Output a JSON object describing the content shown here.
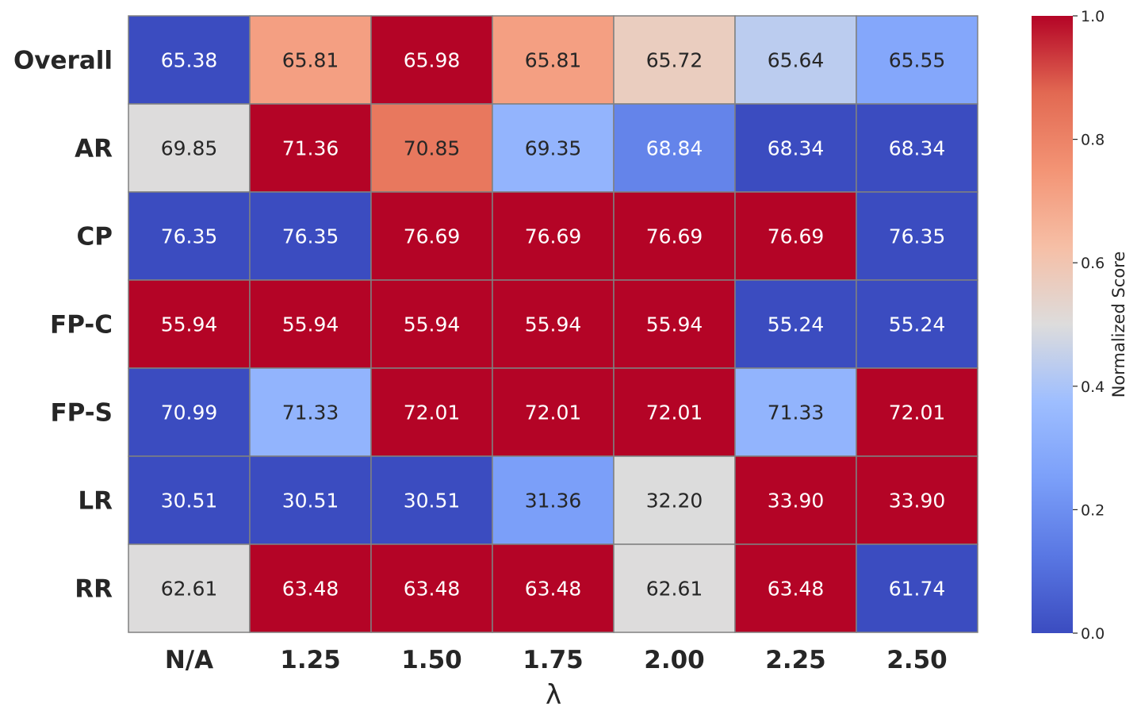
{
  "chart_data": {
    "type": "heatmap",
    "title": "",
    "xlabel": "λ",
    "ylabel": "",
    "x_categories": [
      "N/A",
      "1.25",
      "1.50",
      "1.75",
      "2.00",
      "2.25",
      "2.50"
    ],
    "y_categories": [
      "Overall",
      "AR",
      "CP",
      "FP-C",
      "FP-S",
      "LR",
      "RR"
    ],
    "values": [
      [
        65.38,
        65.81,
        65.98,
        65.81,
        65.72,
        65.64,
        65.55
      ],
      [
        69.85,
        71.36,
        70.85,
        69.35,
        68.84,
        68.34,
        68.34
      ],
      [
        76.35,
        76.35,
        76.69,
        76.69,
        76.69,
        76.69,
        76.35
      ],
      [
        55.94,
        55.94,
        55.94,
        55.94,
        55.94,
        55.24,
        55.24
      ],
      [
        70.99,
        71.33,
        72.01,
        72.01,
        72.01,
        71.33,
        72.01
      ],
      [
        30.51,
        30.51,
        30.51,
        31.36,
        32.2,
        33.9,
        33.9
      ],
      [
        62.61,
        63.48,
        63.48,
        63.48,
        62.61,
        63.48,
        61.74
      ]
    ],
    "labels": [
      [
        "65.38",
        "65.81",
        "65.98",
        "65.81",
        "65.72",
        "65.64",
        "65.55"
      ],
      [
        "69.85",
        "71.36",
        "70.85",
        "69.35",
        "68.84",
        "68.34",
        "68.34"
      ],
      [
        "76.35",
        "76.35",
        "76.69",
        "76.69",
        "76.69",
        "76.69",
        "76.35"
      ],
      [
        "55.94",
        "55.94",
        "55.94",
        "55.94",
        "55.94",
        "55.24",
        "55.24"
      ],
      [
        "70.99",
        "71.33",
        "72.01",
        "72.01",
        "72.01",
        "71.33",
        "72.01"
      ],
      [
        "30.51",
        "30.51",
        "30.51",
        "31.36",
        "32.20",
        "33.90",
        "33.90"
      ],
      [
        "62.61",
        "63.48",
        "63.48",
        "63.48",
        "62.61",
        "63.48",
        "61.74"
      ]
    ],
    "normalization": "per-row min-max",
    "colormap": "coolwarm",
    "colorbar": {
      "label": "Normalized Score",
      "range": [
        0.0,
        1.0
      ],
      "ticks": [
        "0.0",
        "0.2",
        "0.4",
        "0.6",
        "0.8",
        "1.0"
      ],
      "placement": "right"
    },
    "cell_border_color": "#808080",
    "text_colors": {
      "light": "#ffffff",
      "dark": "#262626"
    }
  }
}
